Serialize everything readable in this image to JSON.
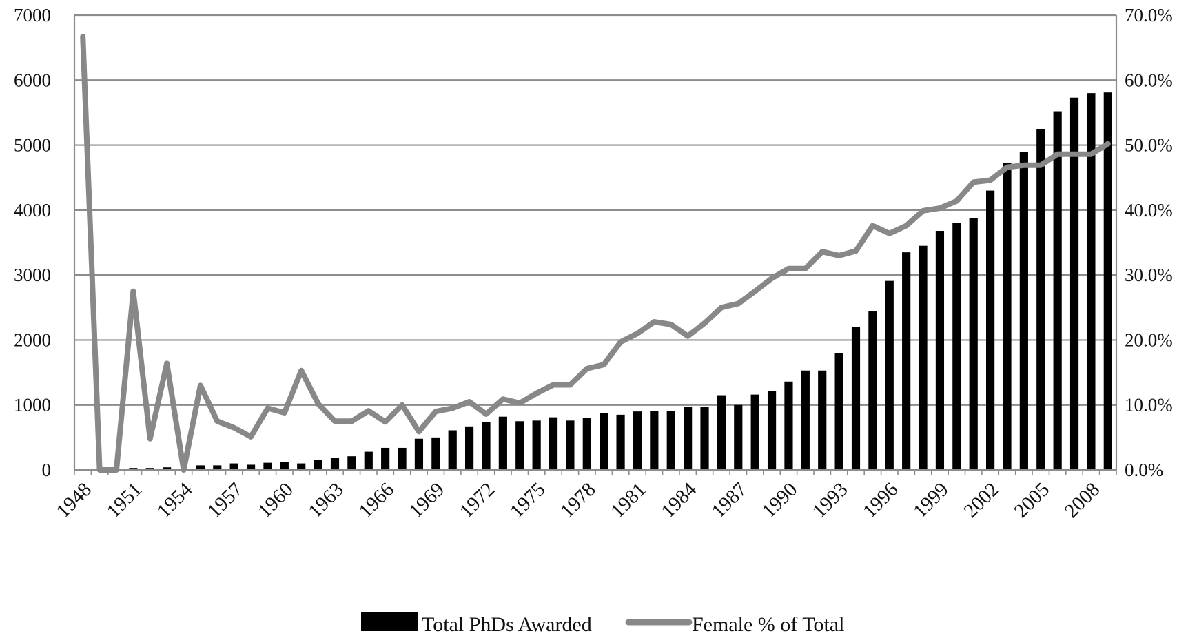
{
  "chart_data": {
    "type": "bar",
    "years": [
      1948,
      1949,
      1950,
      1951,
      1952,
      1953,
      1954,
      1955,
      1956,
      1957,
      1958,
      1959,
      1960,
      1961,
      1962,
      1963,
      1964,
      1965,
      1966,
      1967,
      1968,
      1969,
      1970,
      1971,
      1972,
      1973,
      1974,
      1975,
      1976,
      1977,
      1978,
      1979,
      1980,
      1981,
      1982,
      1983,
      1984,
      1985,
      1986,
      1987,
      1988,
      1989,
      1990,
      1991,
      1992,
      1993,
      1994,
      1995,
      1996,
      1997,
      1998,
      1999,
      2000,
      2001,
      2002,
      2003,
      2004,
      2005,
      2006,
      2007,
      2008,
      2009
    ],
    "x_tick_labels": [
      "1948",
      "1951",
      "1954",
      "1957",
      "1960",
      "1963",
      "1966",
      "1969",
      "1972",
      "1975",
      "1978",
      "1981",
      "1984",
      "1987",
      "1990",
      "1993",
      "1996",
      "1999",
      "2002",
      "2005",
      "2008"
    ],
    "series": [
      {
        "name": "Total PhDs Awarded",
        "type": "bar",
        "axis": "left",
        "color": "#000000",
        "values": [
          0,
          0,
          0,
          30,
          30,
          40,
          0,
          70,
          70,
          100,
          80,
          110,
          120,
          100,
          150,
          180,
          210,
          280,
          340,
          340,
          480,
          500,
          610,
          670,
          740,
          820,
          750,
          760,
          810,
          760,
          800,
          870,
          850,
          900,
          910,
          910,
          970,
          970,
          1150,
          1000,
          1160,
          1210,
          1360,
          1530,
          1530,
          1800,
          2200,
          2440,
          2910,
          3350,
          3450,
          3680,
          3800,
          3880,
          4300,
          4730,
          4900,
          5250,
          5520,
          5730,
          5800,
          5810
        ]
      },
      {
        "name": "Female % of Total",
        "type": "line",
        "axis": "right",
        "color": "#888888",
        "values": [
          66.7,
          0.0,
          0.0,
          27.5,
          4.8,
          16.4,
          0.0,
          13.0,
          7.5,
          6.5,
          5.1,
          9.5,
          8.8,
          15.3,
          10.2,
          7.5,
          7.5,
          9.1,
          7.4,
          10.0,
          5.9,
          9.0,
          9.5,
          10.5,
          8.6,
          10.9,
          10.3,
          11.8,
          13.1,
          13.1,
          15.6,
          16.2,
          19.7,
          21.0,
          22.8,
          22.4,
          20.6,
          22.6,
          25.0,
          25.6,
          27.5,
          29.5,
          31.0,
          31.0,
          33.6,
          33.0,
          33.7,
          37.6,
          36.4,
          37.6,
          39.9,
          40.3,
          41.4,
          44.3,
          44.6,
          46.6,
          46.9,
          46.9,
          48.6,
          48.6,
          48.6,
          50.2
        ]
      }
    ],
    "y_left": {
      "ylim": [
        0,
        7000
      ],
      "ticks": [
        "0",
        "1000",
        "2000",
        "3000",
        "4000",
        "5000",
        "6000",
        "7000"
      ]
    },
    "y_right": {
      "ylim": [
        0,
        70
      ],
      "ticks": [
        "0.0%",
        "10.0%",
        "20.0%",
        "30.0%",
        "40.0%",
        "50.0%",
        "60.0%",
        "70.0%"
      ]
    },
    "grid": true,
    "legend_position": "bottom-center",
    "title": "",
    "xlabel": "",
    "ylabel": ""
  }
}
